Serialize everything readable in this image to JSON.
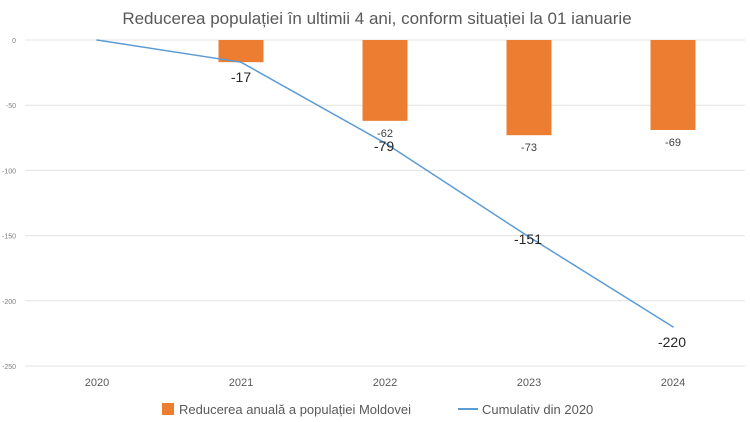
{
  "chart_data": {
    "type": "bar",
    "title": "Reducerea populației în ultimii 4 ani, conform situației la 01 ianuarie",
    "categories": [
      "2020",
      "2021",
      "2022",
      "2023",
      "2024"
    ],
    "ylim": [
      -250,
      0
    ],
    "yticks": [
      0,
      -50,
      -100,
      -150,
      -200,
      -250
    ],
    "grid": true,
    "legend_position": "bottom",
    "series": [
      {
        "name": "Reducerea anuală a populației Moldovei",
        "type": "bar",
        "color": "#ED7D31",
        "values": [
          null,
          -17,
          -62,
          -73,
          -69
        ],
        "labels": [
          "",
          "-17",
          "-62",
          "-73",
          "-69"
        ]
      },
      {
        "name": "Cumulativ din 2020",
        "type": "line",
        "color": "#5B9BD5",
        "values": [
          0,
          -17,
          -79,
          -151,
          -220
        ],
        "labels": [
          "",
          "",
          "-79",
          "-151",
          "-220"
        ]
      }
    ]
  }
}
